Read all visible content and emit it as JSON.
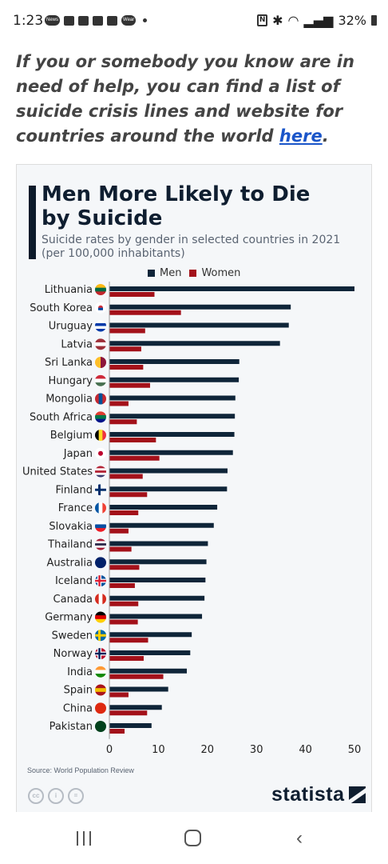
{
  "status_bar": {
    "time": "1:23",
    "notification_icons": [
      "news-icon",
      "cloud-icon",
      "mail-icon",
      "calendar-icon",
      "hand-icon",
      "wear-icon"
    ],
    "pills": [
      "News",
      "Wear"
    ],
    "battery": "32%"
  },
  "intro": {
    "text": "If you or somebody you know are in need of help, you can find a list of suicide crisis lines and website for countries around the world ",
    "link_text": "here",
    "end_text": "."
  },
  "chart_data": {
    "type": "bar",
    "orientation": "horizontal",
    "title": "Men More Likely to Die by Suicide",
    "subtitle": "Suicide rates by gender in selected countries in 2021 (per 100,000 inhabitants)",
    "categories": [
      "Lithuania",
      "South Korea",
      "Uruguay",
      "Latvia",
      "Sri Lanka",
      "Hungary",
      "Mongolia",
      "South Africa",
      "Belgium",
      "Japan",
      "United States",
      "Finland",
      "France",
      "Slovakia",
      "Thailand",
      "Australia",
      "Iceland",
      "Canada",
      "Germany",
      "Sweden",
      "Norway",
      "India",
      "Spain",
      "China",
      "Pakistan"
    ],
    "series": [
      {
        "name": "Men",
        "color": "#0f2539",
        "values": [
          50.0,
          37.0,
          36.6,
          34.8,
          26.5,
          26.4,
          25.7,
          25.6,
          25.5,
          25.2,
          24.1,
          24.0,
          22.0,
          21.3,
          20.1,
          19.8,
          19.6,
          19.4,
          18.9,
          16.8,
          16.5,
          15.8,
          12.0,
          10.7,
          8.6
        ]
      },
      {
        "name": "Women",
        "color": "#a3111a",
        "values": [
          9.2,
          14.6,
          7.3,
          6.5,
          6.9,
          8.3,
          3.9,
          5.6,
          9.5,
          10.2,
          6.8,
          7.7,
          5.9,
          3.9,
          4.5,
          6.1,
          5.2,
          5.9,
          5.8,
          7.9,
          7.0,
          11.0,
          3.9,
          7.7,
          3.1
        ]
      }
    ],
    "x_ticks": [
      "0",
      "10",
      "20",
      "30",
      "40",
      "50"
    ],
    "xlim": [
      0,
      50
    ],
    "grid": false,
    "legend_position": "top",
    "flags": [
      "lt",
      "kr",
      "uy",
      "lv",
      "lk",
      "hu",
      "mn",
      "za",
      "be",
      "jp",
      "us",
      "fi",
      "fr",
      "sk",
      "th",
      "au",
      "is",
      "ca",
      "de",
      "se",
      "no",
      "in",
      "es",
      "cn",
      "pk"
    ]
  },
  "footer": {
    "source": "Source: World Population Review",
    "brand": "statista",
    "license_icons": [
      "creative-commons-icon",
      "attribution-icon",
      "no-derivatives-icon"
    ]
  }
}
